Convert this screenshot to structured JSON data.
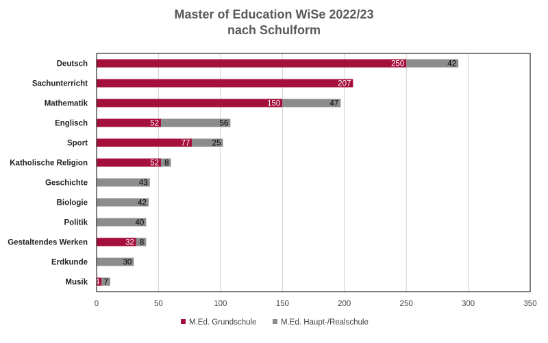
{
  "chart_data": {
    "type": "bar",
    "orientation": "horizontal",
    "stacked": true,
    "title_lines": [
      "Master of Education WiSe 2022/23",
      "nach Schulform"
    ],
    "categories": [
      "Deutsch",
      "Sachunterricht",
      "Mathematik",
      "Englisch",
      "Sport",
      "Katholische Religion",
      "Geschichte",
      "Biologie",
      "Politik",
      "Gestaltendes Werken",
      "Erdkunde",
      "Musik"
    ],
    "series": [
      {
        "name": "M.Ed. Grundschule",
        "color": "#A50F3C",
        "label_color": "#ffffff",
        "values": [
          250,
          207,
          150,
          52,
          77,
          52,
          null,
          null,
          null,
          32,
          null,
          4
        ]
      },
      {
        "name": "M.Ed. Haupt-/Realschule",
        "color": "#8C8C8C",
        "label_color": "#000000",
        "values": [
          42,
          null,
          47,
          56,
          25,
          8,
          43,
          42,
          40,
          8,
          30,
          7
        ]
      }
    ],
    "xlim": [
      0,
      350
    ],
    "xticks": [
      0,
      50,
      100,
      150,
      200,
      250,
      300,
      350
    ],
    "grid": true,
    "legend_position": "bottom"
  }
}
